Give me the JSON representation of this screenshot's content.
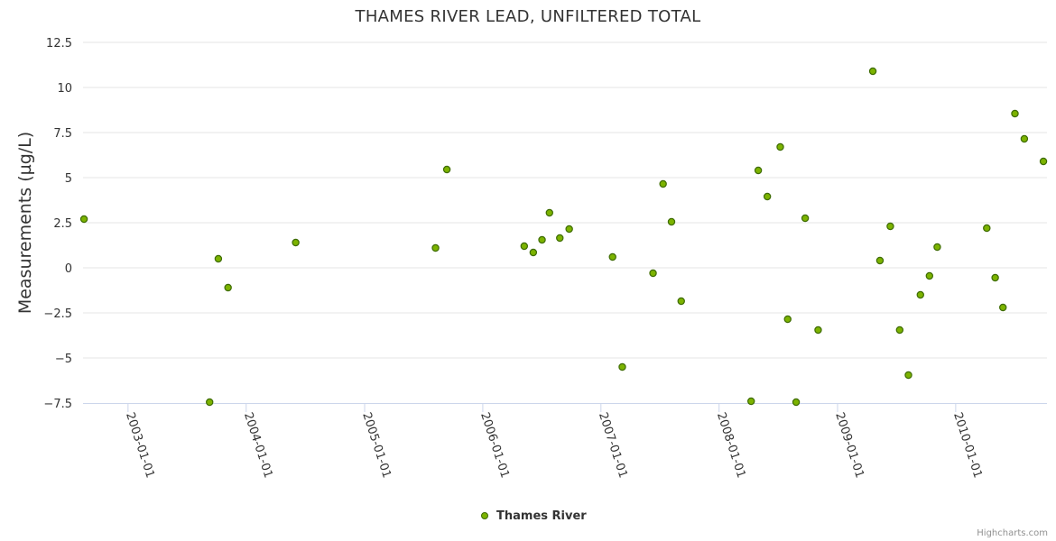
{
  "chart_data": {
    "type": "scatter",
    "title": "THAMES RIVER LEAD, UNFILTERED TOTAL",
    "ylabel": "Measurements (µg/L)",
    "xlabel": "",
    "ylim": [
      -7.5,
      12.5
    ],
    "xlim": [
      "2002-08-15",
      "2010-10-10"
    ],
    "y_ticks": [
      "−7.5",
      "−5",
      "−2.5",
      "0",
      "2.5",
      "5",
      "7.5",
      "10",
      "12.5"
    ],
    "y_tick_values": [
      -7.5,
      -5,
      -2.5,
      0,
      2.5,
      5,
      7.5,
      10,
      12.5
    ],
    "x_ticks": [
      "2003-01-01",
      "2004-01-01",
      "2005-01-01",
      "2006-01-01",
      "2007-01-01",
      "2008-01-01",
      "2009-01-01",
      "2010-01-01"
    ],
    "grid": "horizontal",
    "legend_position": "bottom-center",
    "marker_color": "#7cb300",
    "marker_stroke": "#3d6b00",
    "series": [
      {
        "name": "Thames River",
        "points": [
          {
            "x": "2002-08-18",
            "y": 2.7
          },
          {
            "x": "2003-09-10",
            "y": -7.45
          },
          {
            "x": "2003-10-07",
            "y": 0.5
          },
          {
            "x": "2003-11-06",
            "y": -1.1
          },
          {
            "x": "2004-06-02",
            "y": 1.4
          },
          {
            "x": "2005-08-08",
            "y": 1.1
          },
          {
            "x": "2005-09-12",
            "y": 5.45
          },
          {
            "x": "2006-05-09",
            "y": 1.2
          },
          {
            "x": "2006-06-06",
            "y": 0.85
          },
          {
            "x": "2006-07-03",
            "y": 1.55
          },
          {
            "x": "2006-07-26",
            "y": 3.05
          },
          {
            "x": "2006-08-27",
            "y": 1.65
          },
          {
            "x": "2006-09-25",
            "y": 2.15
          },
          {
            "x": "2007-02-06",
            "y": 0.6
          },
          {
            "x": "2007-03-08",
            "y": -5.5
          },
          {
            "x": "2007-06-11",
            "y": -0.3
          },
          {
            "x": "2007-07-12",
            "y": 4.65
          },
          {
            "x": "2007-08-07",
            "y": 2.55
          },
          {
            "x": "2007-09-06",
            "y": -1.85
          },
          {
            "x": "2008-04-09",
            "y": -7.4
          },
          {
            "x": "2008-05-01",
            "y": 5.4
          },
          {
            "x": "2008-05-29",
            "y": 3.95
          },
          {
            "x": "2008-07-08",
            "y": 6.7
          },
          {
            "x": "2008-07-31",
            "y": -2.85
          },
          {
            "x": "2008-08-26",
            "y": -7.45
          },
          {
            "x": "2008-09-23",
            "y": 2.75
          },
          {
            "x": "2008-11-02",
            "y": -3.45
          },
          {
            "x": "2009-04-20",
            "y": 10.9
          },
          {
            "x": "2009-05-12",
            "y": 0.4
          },
          {
            "x": "2009-06-13",
            "y": 2.3
          },
          {
            "x": "2009-07-12",
            "y": -3.45
          },
          {
            "x": "2009-08-08",
            "y": -5.95
          },
          {
            "x": "2009-09-14",
            "y": -1.5
          },
          {
            "x": "2009-10-12",
            "y": -0.45
          },
          {
            "x": "2009-11-05",
            "y": 1.15
          },
          {
            "x": "2010-04-07",
            "y": 2.2
          },
          {
            "x": "2010-05-03",
            "y": -0.55
          },
          {
            "x": "2010-05-27",
            "y": -2.2
          },
          {
            "x": "2010-07-03",
            "y": 8.55
          },
          {
            "x": "2010-08-01",
            "y": 7.15
          },
          {
            "x": "2010-09-29",
            "y": 5.9
          }
        ]
      }
    ]
  },
  "credits": "Highcharts.com"
}
